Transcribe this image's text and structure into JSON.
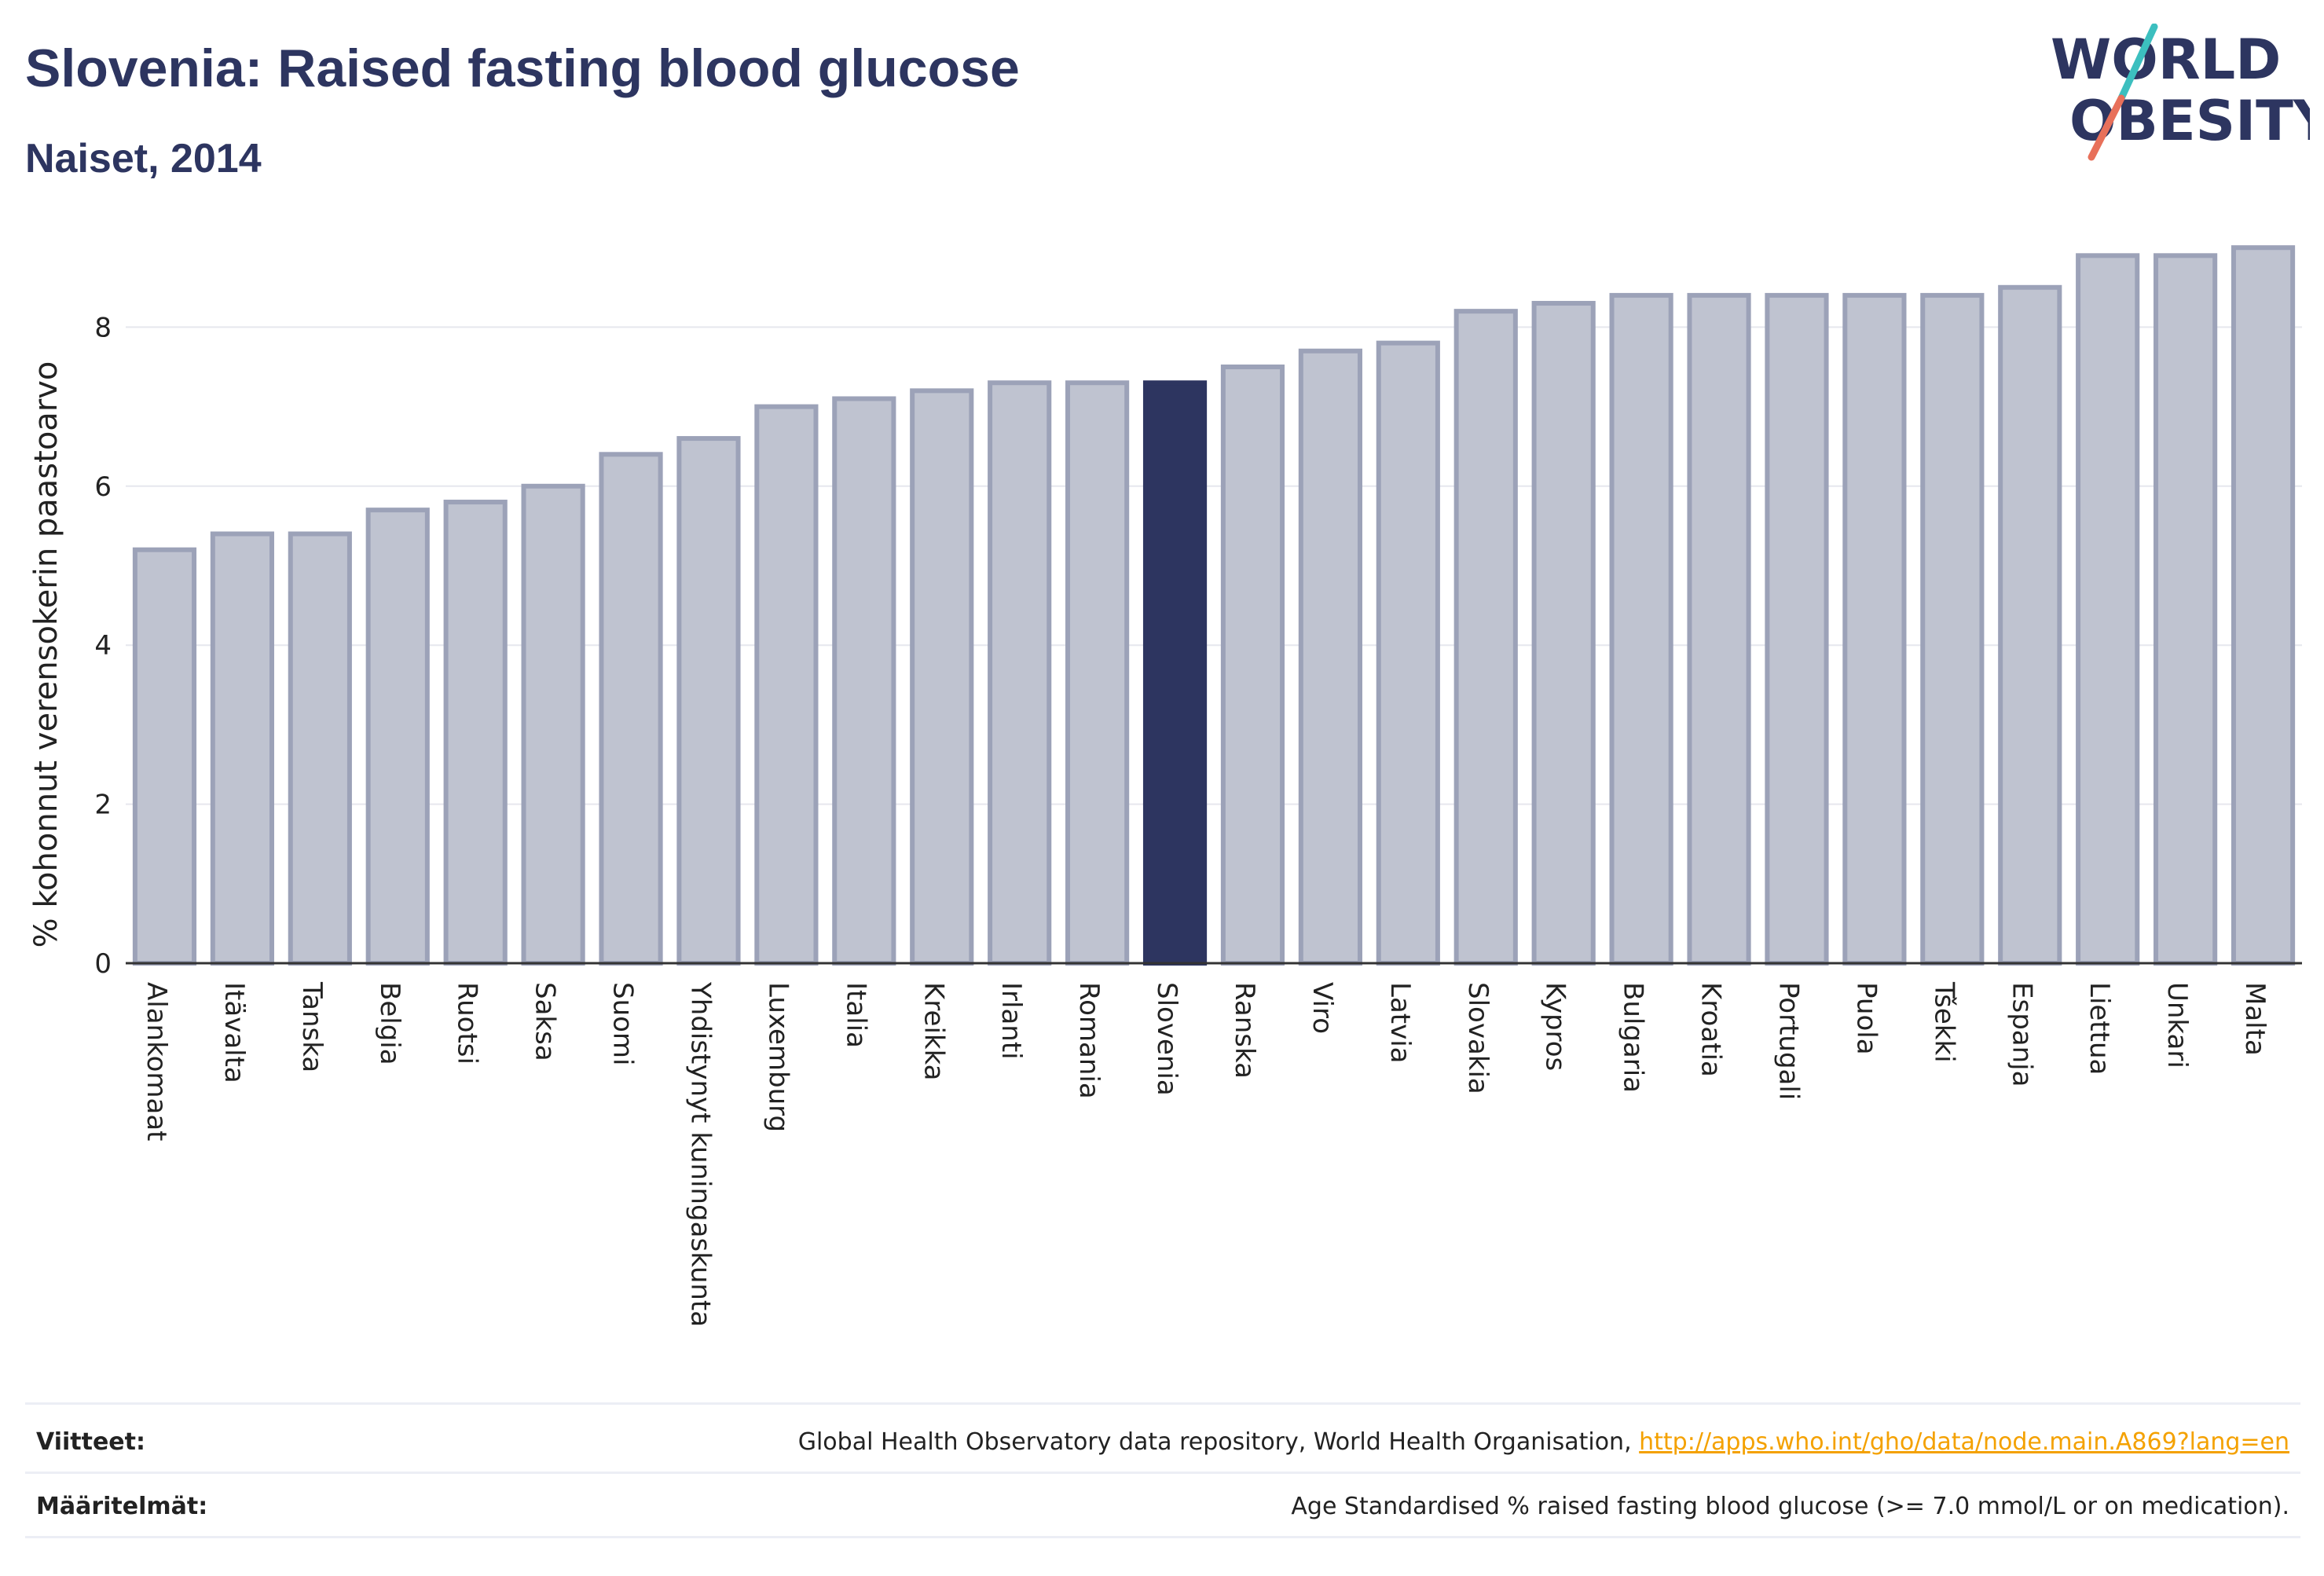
{
  "header": {
    "title": "Slovenia: Raised fasting blood glucose",
    "subtitle": "Naiset, 2014",
    "logo_line1": "WORLD",
    "logo_line2": "OBESITY"
  },
  "colors": {
    "bar": "#bfc3d0",
    "bar_border": "#9ca2b8",
    "highlight": "#2d3560",
    "logo_slash_top": "#3cbfbf",
    "logo_slash_bottom": "#e8705a",
    "link": "#f4a100"
  },
  "chart_data": {
    "type": "bar",
    "title": "Slovenia: Raised fasting blood glucose",
    "subtitle": "Naiset, 2014",
    "ylabel": "% kohonnut verensokerin paastoarvo",
    "xlabel": "",
    "ylim": [
      0,
      9.15
    ],
    "yticks": [
      0,
      2,
      4,
      6,
      8
    ],
    "grid": true,
    "highlight": "Slovenia",
    "categories": [
      "Alankomaat",
      "Itävalta",
      "Tanska",
      "Belgia",
      "Ruotsi",
      "Saksa",
      "Suomi",
      "Yhdistynyt kuningaskunta",
      "Luxemburg",
      "Italia",
      "Kreikka",
      "Irlanti",
      "Romania",
      "Slovenia",
      "Ranska",
      "Viro",
      "Latvia",
      "Slovakia",
      "Kypros",
      "Bulgaria",
      "Kroatia",
      "Portugali",
      "Puola",
      "Tšekki",
      "Espanja",
      "Liettua",
      "Unkari",
      "Malta"
    ],
    "values": [
      5.2,
      5.4,
      5.4,
      5.7,
      5.8,
      6.0,
      6.4,
      6.6,
      7.0,
      7.1,
      7.2,
      7.3,
      7.3,
      7.3,
      7.5,
      7.7,
      7.8,
      8.2,
      8.3,
      8.4,
      8.4,
      8.4,
      8.4,
      8.4,
      8.5,
      8.9,
      8.9,
      9.0
    ]
  },
  "footer": {
    "references_label": "Viitteet:",
    "references_text": "Global Health Observatory data repository, World Health Organisation, ",
    "references_link": "http://apps.who.int/gho/data/node.main.A869?lang=en",
    "definitions_label": "Määritelmät:",
    "definitions_text": "Age Standardised % raised fasting blood glucose (>= 7.0 mmol/L or on medication)."
  }
}
